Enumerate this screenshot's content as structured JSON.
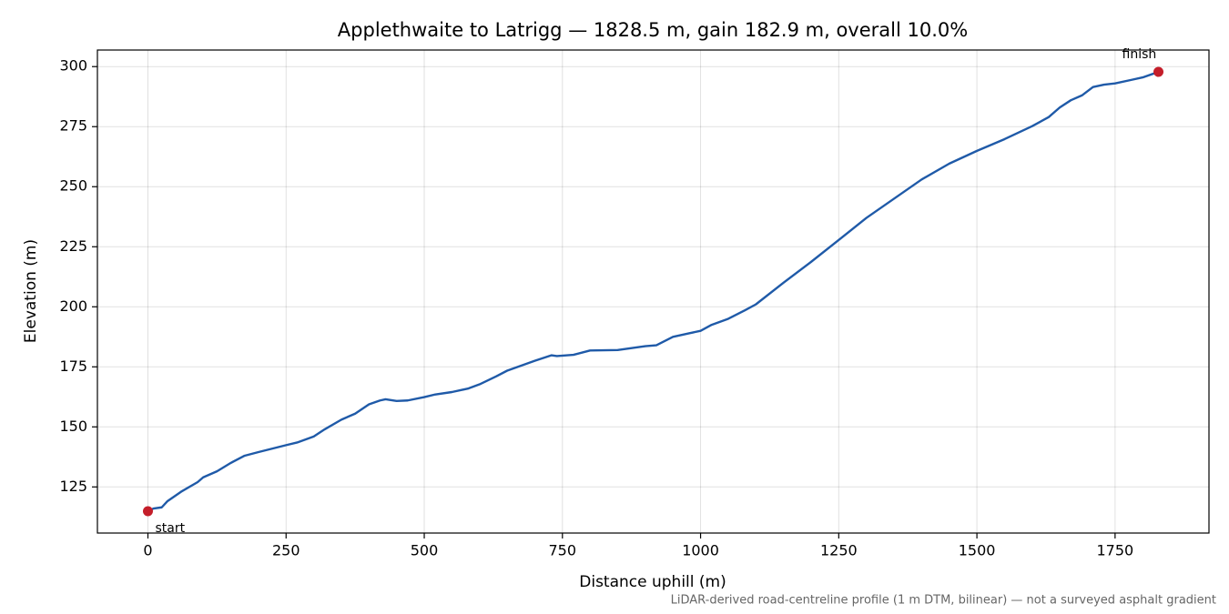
{
  "chart_data": {
    "type": "line",
    "title": "Applethwaite to Latrigg — 1828.5 m, gain 182.9 m, overall 10.0%",
    "x_label": "Distance uphill (m)",
    "y_label": "Elevation (m)",
    "footnote": "LiDAR-derived road-centreline profile (1 m DTM, bilinear) — not a surveyed asphalt gradient",
    "annotations": [
      "start",
      "finish"
    ],
    "marker_color": "#c41e2a",
    "grid": true,
    "xlim": [
      -91.4,
      1919.9
    ],
    "ylim": [
      105.8,
      306.9
    ],
    "xticks": [
      0,
      250,
      500,
      750,
      1000,
      1250,
      1500,
      1750
    ],
    "yticks": [
      125,
      150,
      175,
      200,
      225,
      250,
      275,
      300
    ],
    "series": [
      {
        "name": "Elevation",
        "color": "#1f5aa8",
        "x": [
          0,
          10,
          25,
          35,
          60,
          90,
          100,
          125,
          150,
          175,
          200,
          250,
          270,
          300,
          320,
          350,
          375,
          400,
          420,
          430,
          450,
          470,
          500,
          520,
          550,
          580,
          600,
          630,
          650,
          700,
          730,
          740,
          770,
          800,
          850,
          900,
          920,
          950,
          980,
          1000,
          1020,
          1050,
          1080,
          1100,
          1150,
          1200,
          1250,
          1300,
          1350,
          1400,
          1450,
          1500,
          1550,
          1600,
          1630,
          1650,
          1670,
          1690,
          1710,
          1730,
          1750,
          1780,
          1800,
          1828.5
        ],
        "values": [
          114.9,
          116,
          116.5,
          119,
          123,
          127,
          129,
          131.5,
          135,
          138,
          139.5,
          142.4,
          143.5,
          146,
          149,
          153,
          155.5,
          159.4,
          161,
          161.5,
          160.8,
          161,
          162.4,
          163.5,
          164.5,
          166,
          167.7,
          171,
          173.4,
          177.5,
          179.8,
          179.5,
          180,
          181.8,
          182,
          183.6,
          184,
          187.5,
          189,
          190,
          192.5,
          195,
          198.5,
          201,
          210,
          218.7,
          227.8,
          237,
          245,
          253,
          259.6,
          264.9,
          269.8,
          275.2,
          279,
          283,
          286,
          288,
          291.5,
          292.5,
          293,
          294.5,
          295.5,
          297.8
        ]
      }
    ]
  }
}
